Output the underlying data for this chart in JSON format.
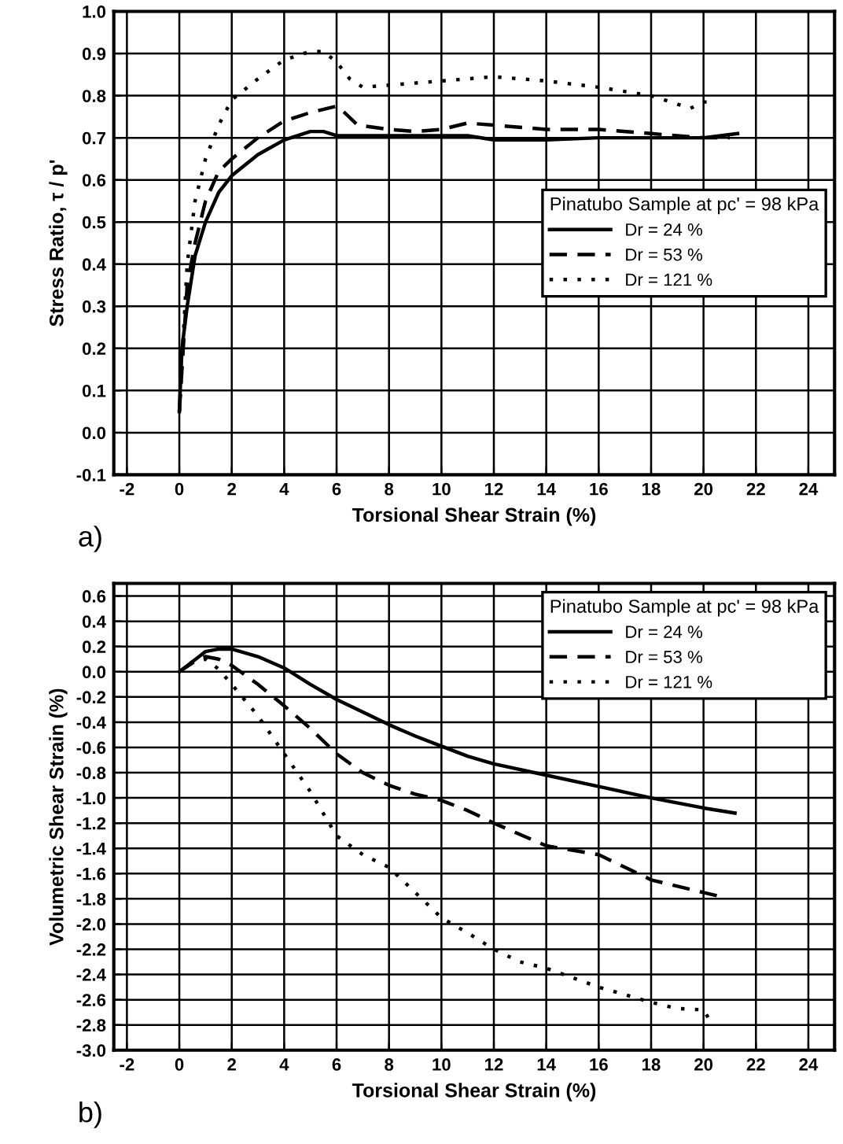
{
  "chart_data": [
    {
      "type": "line",
      "xlabel": "Torsional Shear Strain (%)",
      "ylabel": "Stress Ratio, τ / p'",
      "legend_title": "Pinatubo Sample at pc' = 98 kPa",
      "annotations": [
        "a)"
      ],
      "legend": "right",
      "grid": true,
      "xlim": [
        -2.5,
        25
      ],
      "xticks": [
        -2,
        0,
        2,
        4,
        6,
        8,
        10,
        12,
        14,
        16,
        18,
        20,
        22,
        24
      ],
      "ylim": [
        -0.1,
        1.0
      ],
      "yticks": [
        {
          "value": -0.1,
          "label": "-0.1"
        },
        {
          "value": 0,
          "label": "0.0"
        },
        {
          "value": 0.1,
          "label": "0.1"
        },
        {
          "value": 0.2,
          "label": "0.2"
        },
        {
          "value": 0.3,
          "label": "0.3"
        },
        {
          "value": 0.4,
          "label": "0.4"
        },
        {
          "value": 0.5,
          "label": "0.5"
        },
        {
          "value": 0.6,
          "label": "0.6"
        },
        {
          "value": 0.7,
          "label": "0.7"
        },
        {
          "value": 0.8,
          "label": "0.8"
        },
        {
          "value": 0.9,
          "label": "0.9"
        },
        {
          "value": 1.0,
          "label": "1.0"
        }
      ],
      "series": [
        {
          "name": "Dr = 24 %",
          "color": "#000000",
          "line_style": "solid",
          "x": [
            0,
            0.1,
            0.3,
            0.6,
            1,
            1.5,
            2,
            3,
            4,
            5,
            5.5,
            6,
            8,
            10,
            11,
            12,
            14,
            16,
            18,
            20,
            21.3
          ],
          "values": [
            0.05,
            0.2,
            0.3,
            0.42,
            0.5,
            0.57,
            0.61,
            0.66,
            0.695,
            0.715,
            0.715,
            0.705,
            0.705,
            0.705,
            0.705,
            0.695,
            0.695,
            0.7,
            0.7,
            0.7,
            0.71
          ]
        },
        {
          "name": "Dr = 53 %",
          "color": "#000000",
          "line_style": "dashed",
          "x": [
            0,
            0.3,
            0.6,
            1,
            1.5,
            2,
            3,
            4,
            5,
            6,
            6.3,
            6.8,
            8,
            9,
            10,
            11,
            12,
            14,
            16,
            18,
            20,
            21
          ],
          "values": [
            0.05,
            0.35,
            0.45,
            0.55,
            0.62,
            0.65,
            0.7,
            0.74,
            0.76,
            0.775,
            0.76,
            0.73,
            0.72,
            0.715,
            0.72,
            0.735,
            0.73,
            0.72,
            0.72,
            0.71,
            0.7,
            0.7
          ]
        },
        {
          "name": "Dr = 121 %",
          "color": "#000000",
          "line_style": "dotted",
          "x": [
            0,
            0.3,
            0.6,
            1,
            1.5,
            2,
            3,
            4,
            5,
            5.5,
            6,
            6.5,
            7,
            8,
            10,
            12,
            14,
            16,
            18,
            19,
            19.5,
            20,
            20.5
          ],
          "values": [
            0.05,
            0.4,
            0.55,
            0.65,
            0.73,
            0.79,
            0.84,
            0.885,
            0.905,
            0.905,
            0.88,
            0.84,
            0.82,
            0.825,
            0.835,
            0.845,
            0.835,
            0.82,
            0.8,
            0.78,
            0.77,
            0.785,
            0.785
          ]
        }
      ]
    },
    {
      "type": "line",
      "xlabel": "Torsional Shear Strain (%)",
      "ylabel": "Volumetric Shear Strain (%)",
      "legend_title": "Pinatubo Sample at pc' = 98 kPa",
      "annotations": [
        "b)"
      ],
      "legend": "top right",
      "grid": true,
      "xlim": [
        -2.5,
        25
      ],
      "xticks": [
        -2,
        0,
        2,
        4,
        6,
        8,
        10,
        12,
        14,
        16,
        18,
        20,
        22,
        24
      ],
      "ylim": [
        -3.0,
        0.7
      ],
      "yticks": [
        {
          "value": -3.0,
          "label": "-3.0"
        },
        {
          "value": -2.8,
          "label": "-2.8"
        },
        {
          "value": -2.6,
          "label": "-2.6"
        },
        {
          "value": -2.4,
          "label": "-2.4"
        },
        {
          "value": -2.2,
          "label": "-2.2"
        },
        {
          "value": -2.0,
          "label": "-2.0"
        },
        {
          "value": -1.8,
          "label": "-1.8"
        },
        {
          "value": -1.6,
          "label": "-1.6"
        },
        {
          "value": -1.4,
          "label": "-1.4"
        },
        {
          "value": -1.2,
          "label": "-1.2"
        },
        {
          "value": -1.0,
          "label": "-1.0"
        },
        {
          "value": -0.8,
          "label": "-0.8"
        },
        {
          "value": -0.6,
          "label": "-0.6"
        },
        {
          "value": -0.4,
          "label": "-0.4"
        },
        {
          "value": -0.2,
          "label": "-0.2"
        },
        {
          "value": 0,
          "label": "0.0"
        },
        {
          "value": 0.2,
          "label": "0.2"
        },
        {
          "value": 0.4,
          "label": "0.4"
        },
        {
          "value": 0.6,
          "label": "0.6"
        }
      ],
      "series": [
        {
          "name": "Dr = 24 %",
          "color": "#000000",
          "line_style": "solid",
          "x": [
            0,
            0.5,
            1,
            1.5,
            2,
            3,
            4,
            5,
            6,
            7,
            8,
            9,
            10,
            11,
            12,
            14,
            16,
            18,
            20,
            21.2
          ],
          "values": [
            0,
            0.08,
            0.16,
            0.18,
            0.18,
            0.12,
            0.03,
            -0.1,
            -0.22,
            -0.32,
            -0.42,
            -0.51,
            -0.59,
            -0.67,
            -0.73,
            -0.82,
            -0.91,
            -1.0,
            -1.08,
            -1.12
          ]
        },
        {
          "name": "Dr = 53 %",
          "color": "#000000",
          "line_style": "dashed",
          "x": [
            0,
            0.5,
            1,
            1.5,
            2,
            3,
            4,
            5,
            6,
            7,
            8,
            9,
            10,
            11,
            12,
            14,
            16,
            17,
            18,
            20,
            20.6
          ],
          "values": [
            0,
            0.07,
            0.12,
            0.1,
            0.05,
            -0.1,
            -0.27,
            -0.45,
            -0.65,
            -0.8,
            -0.9,
            -0.97,
            -1.02,
            -1.1,
            -1.2,
            -1.38,
            -1.45,
            -1.55,
            -1.65,
            -1.75,
            -1.78
          ]
        },
        {
          "name": "Dr = 121 %",
          "color": "#000000",
          "line_style": "dotted",
          "x": [
            0,
            0.5,
            1,
            1.5,
            2,
            3,
            4,
            5,
            6,
            7,
            8,
            9,
            10,
            11,
            12,
            13,
            14,
            16,
            18,
            19,
            20,
            20.2
          ],
          "values": [
            0,
            0.08,
            0.1,
            0.02,
            -0.1,
            -0.35,
            -0.65,
            -0.95,
            -1.3,
            -1.45,
            -1.55,
            -1.75,
            -1.95,
            -2.07,
            -2.2,
            -2.3,
            -2.35,
            -2.5,
            -2.62,
            -2.67,
            -2.68,
            -2.75
          ]
        }
      ]
    }
  ]
}
